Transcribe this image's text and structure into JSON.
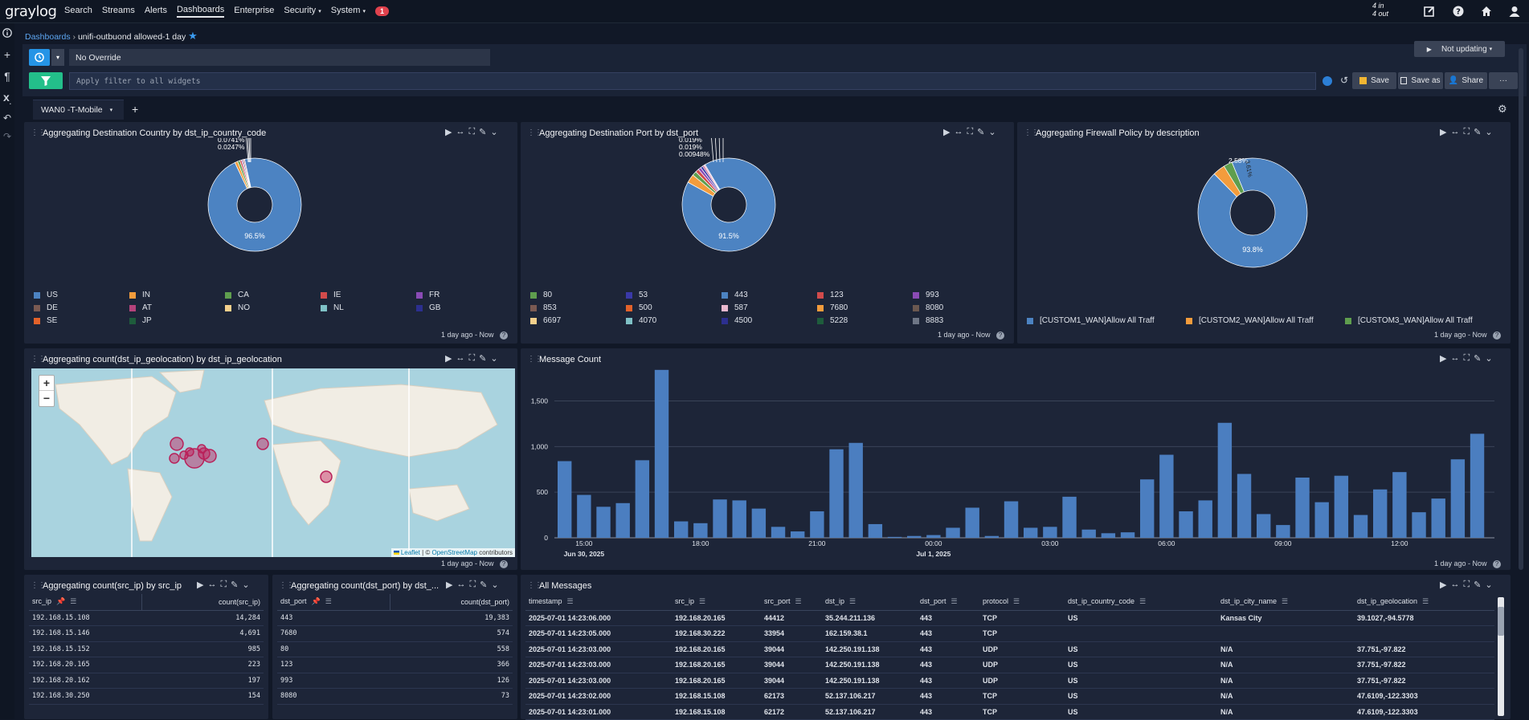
{
  "nav": {
    "logo": "graylog",
    "items": [
      "Search",
      "Streams",
      "Alerts",
      "Dashboards",
      "Enterprise",
      "Security",
      "System"
    ],
    "alerts_badge": "1",
    "throughput_in": "4 in",
    "throughput_out": "4 out"
  },
  "breadcrumb": {
    "root": "Dashboards",
    "current": "unifi-outbuond allowed-1 day"
  },
  "search": {
    "override": "No Override",
    "filter_placeholder": "Apply filter to all widgets",
    "not_updating": "Not updating",
    "save": "Save",
    "save_as": "Save as",
    "share": "Share"
  },
  "tabs": {
    "active": "WAN0 -T-Mobile"
  },
  "widgets": {
    "country": {
      "title": "Aggregating Destination Country by dst_ip_country_code",
      "labels": [
        "0.0741%",
        "0.0741%",
        "0.0247%"
      ],
      "main_pct": "96.5%",
      "legend": [
        "US",
        "IN",
        "CA",
        "IE",
        "FR",
        "DE",
        "AT",
        "NO",
        "NL",
        "GB",
        "SE",
        "JP"
      ],
      "colors": [
        "#4c83c2",
        "#f39c3c",
        "#5f9e4e",
        "#d14b4b",
        "#8a4bb5",
        "#7a5a52",
        "#b5437b",
        "#f4d08c",
        "#7fc1c6",
        "#2c2f8f",
        "#e3622a",
        "#1e5c3c"
      ],
      "footer": "1 day ago - Now"
    },
    "port": {
      "title": "Aggregating Destination Port by dst_port",
      "labels": [
        "0.0237%",
        "0.019%",
        "0.019%",
        "0.00948%"
      ],
      "main_pct": "91.5%",
      "legend": [
        "80",
        "53",
        "443",
        "123",
        "993",
        "853",
        "500",
        "587",
        "7680",
        "8080",
        "6697",
        "4070",
        "4500",
        "5228",
        "8883"
      ],
      "colors": [
        "#5f9e4e",
        "#3a39a8",
        "#4c83c2",
        "#d14b4b",
        "#8a4bb5",
        "#7a5a52",
        "#e3622a",
        "#e8b8cf",
        "#f39c3c",
        "#6b5850",
        "#f4d08c",
        "#7fc1c6",
        "#2c2f8f",
        "#1e5c3c",
        "#6e7686"
      ],
      "footer": "1 day ago - Now"
    },
    "policy": {
      "title": "Aggregating Firewall Policy by description",
      "labels": [
        "2.58%",
        "3.61%"
      ],
      "main_pct": "93.8%",
      "legend": [
        "[CUSTOM1_WAN]Allow All Traff",
        "[CUSTOM2_WAN]Allow All Traff",
        "[CUSTOM3_WAN]Allow All Traff"
      ],
      "colors": [
        "#4c83c2",
        "#f39c3c",
        "#5f9e4e"
      ],
      "footer": "1 day ago - Now"
    },
    "geo": {
      "title": "Aggregating count(dst_ip_geolocation) by dst_ip_geolocation",
      "zoom_in": "+",
      "zoom_out": "−",
      "attribution_leaflet": "Leaflet",
      "attribution_sep": " | © ",
      "attribution_osm": "OpenStreetMap",
      "attribution_tail": " contributors",
      "footer": "1 day ago - Now"
    },
    "msgcount": {
      "title": "Message Count",
      "footer": "1 day ago - Now"
    },
    "srcip": {
      "title": "Aggregating count(src_ip) by src_ip",
      "col1": "src_ip",
      "col2": "count(src_ip)",
      "rows": [
        [
          "192.168.15.108",
          "14,284"
        ],
        [
          "192.168.15.146",
          "4,691"
        ],
        [
          "192.168.15.152",
          "985"
        ],
        [
          "192.168.20.165",
          "223"
        ],
        [
          "192.168.20.162",
          "197"
        ],
        [
          "192.168.30.250",
          "154"
        ]
      ]
    },
    "dstport": {
      "title": "Aggregating count(dst_port) by dst_...",
      "col1": "dst_port",
      "col2": "count(dst_port)",
      "rows": [
        [
          "443",
          "19,383"
        ],
        [
          "7680",
          "574"
        ],
        [
          "80",
          "558"
        ],
        [
          "123",
          "366"
        ],
        [
          "993",
          "126"
        ],
        [
          "8080",
          "73"
        ]
      ]
    },
    "messages": {
      "title": "All Messages",
      "columns": [
        "timestamp",
        "src_ip",
        "src_port",
        "dst_ip",
        "dst_port",
        "protocol",
        "dst_ip_country_code",
        "dst_ip_city_name",
        "dst_ip_geolocation"
      ],
      "rows": [
        [
          "2025-07-01 14:23:06.000",
          "192.168.20.165",
          "44412",
          "35.244.211.136",
          "443",
          "TCP",
          "US",
          "Kansas City",
          "39.1027,-94.5778"
        ],
        [
          "2025-07-01 14:23:05.000",
          "192.168.30.222",
          "33954",
          "162.159.38.1",
          "443",
          "TCP",
          "",
          "",
          ""
        ],
        [
          "2025-07-01 14:23:03.000",
          "192.168.20.165",
          "39044",
          "142.250.191.138",
          "443",
          "UDP",
          "US",
          "N/A",
          "37.751,-97.822"
        ],
        [
          "2025-07-01 14:23:03.000",
          "192.168.20.165",
          "39044",
          "142.250.191.138",
          "443",
          "UDP",
          "US",
          "N/A",
          "37.751,-97.822"
        ],
        [
          "2025-07-01 14:23:03.000",
          "192.168.20.165",
          "39044",
          "142.250.191.138",
          "443",
          "UDP",
          "US",
          "N/A",
          "37.751,-97.822"
        ],
        [
          "2025-07-01 14:23:02.000",
          "192.168.15.108",
          "62173",
          "52.137.106.217",
          "443",
          "TCP",
          "US",
          "N/A",
          "47.6109,-122.3303"
        ],
        [
          "2025-07-01 14:23:01.000",
          "192.168.15.108",
          "62172",
          "52.137.106.217",
          "443",
          "TCP",
          "US",
          "N/A",
          "47.6109,-122.3303"
        ]
      ]
    }
  },
  "chart_data": {
    "type": "bar",
    "yticks": [
      "0",
      "500",
      "1,000",
      "1,500"
    ],
    "ylim": [
      0,
      1900
    ],
    "xticks": [
      "15:00",
      "18:00",
      "21:00",
      "00:00",
      "03:00",
      "06:00",
      "09:00",
      "12:00"
    ],
    "xticks_sub": [
      "Jun 30, 2025",
      "",
      "",
      "Jul 1, 2025",
      "",
      "",
      "",
      ""
    ],
    "values": [
      840,
      470,
      340,
      380,
      850,
      1840,
      180,
      160,
      420,
      410,
      320,
      120,
      70,
      290,
      970,
      1040,
      150,
      10,
      20,
      30,
      110,
      330,
      20,
      400,
      110,
      120,
      450,
      90,
      50,
      60,
      640,
      910,
      290,
      410,
      1260,
      700,
      260,
      140,
      660,
      390,
      680,
      250,
      530,
      720,
      280,
      430,
      860,
      1140
    ]
  }
}
